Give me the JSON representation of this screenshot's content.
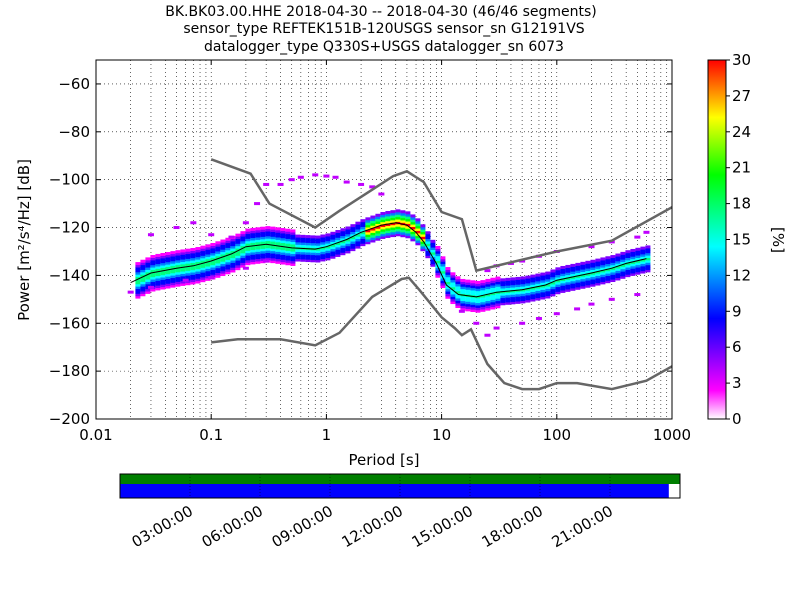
{
  "title_lines": [
    "BK.BK03.00.HHE   2018-04-30 -- 2018-04-30  (46/46 segments)",
    "sensor_type REFTEK151B-120USGS sensor_sn G12191VS",
    "datalogger_type Q330S+USGS datalogger_sn 6073"
  ],
  "chart_data": {
    "type": "heatmap",
    "xlabel": "Period [s]",
    "ylabel": "Power [m²/s⁴/Hz] [dB]",
    "x_scale": "log",
    "xlim": [
      0.01,
      1000
    ],
    "ylim": [
      -200,
      -50
    ],
    "x_ticks": [
      {
        "value": 0.01,
        "label": "0.01"
      },
      {
        "value": 0.1,
        "label": "0.1"
      },
      {
        "value": 1,
        "label": "1"
      },
      {
        "value": 10,
        "label": "10"
      },
      {
        "value": 100,
        "label": "100"
      },
      {
        "value": 1000,
        "label": "1000"
      }
    ],
    "y_ticks": [
      {
        "value": -200,
        "label": "−200"
      },
      {
        "value": -180,
        "label": "−180"
      },
      {
        "value": -160,
        "label": "−160"
      },
      {
        "value": -140,
        "label": "−140"
      },
      {
        "value": -120,
        "label": "−120"
      },
      {
        "value": -100,
        "label": "−100"
      },
      {
        "value": -80,
        "label": "−80"
      },
      {
        "value": -60,
        "label": "−60"
      }
    ],
    "grid": "dotted, at log period ticks",
    "colorbar": {
      "label": "[%]",
      "range": [
        0,
        30
      ],
      "ticks": [
        {
          "value": 30,
          "label": "30"
        },
        {
          "value": 27,
          "label": "27"
        },
        {
          "value": 24,
          "label": "24"
        },
        {
          "value": 21,
          "label": "21"
        },
        {
          "value": 18,
          "label": "18"
        },
        {
          "value": 15,
          "label": "15"
        },
        {
          "value": 12,
          "label": "12"
        },
        {
          "value": 9,
          "label": "9"
        },
        {
          "value": 6,
          "label": "6"
        },
        {
          "value": 3,
          "label": "3"
        },
        {
          "value": 0,
          "label": "0"
        }
      ]
    },
    "noise_models": [
      {
        "color": "#666666",
        "points": [
          [
            0.1,
            -91.5
          ],
          [
            0.22,
            -97.5
          ],
          [
            0.32,
            -110
          ],
          [
            0.8,
            -120
          ],
          [
            1.3,
            -113
          ],
          [
            3.8,
            -98.5
          ],
          [
            5,
            -96.5
          ],
          [
            7,
            -101
          ],
          [
            10,
            -113.5
          ],
          [
            15,
            -116.5
          ],
          [
            20,
            -138
          ],
          [
            100,
            -130
          ],
          [
            300,
            -125.5
          ],
          [
            1000,
            -111.5
          ]
        ]
      },
      {
        "color": "#666666",
        "points": [
          [
            0.1,
            -168
          ],
          [
            0.17,
            -166.7
          ],
          [
            0.4,
            -166.7
          ],
          [
            0.8,
            -169.2
          ],
          [
            1.3,
            -164
          ],
          [
            2.5,
            -149
          ],
          [
            4.5,
            -141.5
          ],
          [
            5.2,
            -141
          ],
          [
            6.4,
            -146
          ],
          [
            10,
            -157.5
          ],
          [
            13,
            -162
          ],
          [
            15,
            -165
          ],
          [
            18,
            -162.5
          ],
          [
            25,
            -177
          ],
          [
            35,
            -185
          ],
          [
            50,
            -187.5
          ],
          [
            70,
            -187.5
          ],
          [
            100,
            -185
          ],
          [
            150,
            -185
          ],
          [
            300,
            -187.5
          ],
          [
            600,
            -184
          ],
          [
            1000,
            -178
          ]
        ]
      }
    ],
    "mean_curve": {
      "color": "#000000",
      "points": [
        [
          0.02,
          -143
        ],
        [
          0.03,
          -139
        ],
        [
          0.05,
          -137
        ],
        [
          0.07,
          -136
        ],
        [
          0.1,
          -134
        ],
        [
          0.15,
          -131
        ],
        [
          0.2,
          -128
        ],
        [
          0.3,
          -127
        ],
        [
          0.5,
          -128.5
        ],
        [
          0.8,
          -129
        ],
        [
          1,
          -128
        ],
        [
          1.5,
          -125
        ],
        [
          2,
          -122
        ],
        [
          3,
          -119
        ],
        [
          4,
          -118
        ],
        [
          5,
          -119
        ],
        [
          6,
          -122
        ],
        [
          7,
          -126
        ],
        [
          9,
          -135
        ],
        [
          11,
          -144
        ],
        [
          14,
          -148
        ],
        [
          20,
          -149
        ],
        [
          30,
          -147
        ],
        [
          50,
          -146
        ],
        [
          80,
          -144
        ],
        [
          100,
          -142
        ],
        [
          200,
          -139
        ],
        [
          300,
          -137
        ],
        [
          400,
          -135
        ],
        [
          600,
          -133
        ]
      ]
    },
    "psd_bands": [
      {
        "center": [
          [
            0.02,
            -143
          ],
          [
            0.03,
            -139
          ],
          [
            0.05,
            -137
          ],
          [
            0.07,
            -136
          ],
          [
            0.1,
            -134
          ],
          [
            0.15,
            -131
          ],
          [
            0.2,
            -128
          ],
          [
            0.3,
            -127
          ],
          [
            0.5,
            -128.5
          ],
          [
            0.8,
            -129
          ],
          [
            1,
            -128
          ],
          [
            1.5,
            -125
          ],
          [
            2,
            -122
          ],
          [
            3,
            -119
          ],
          [
            4,
            -118
          ],
          [
            5,
            -119
          ],
          [
            6,
            -122
          ],
          [
            7,
            -126
          ],
          [
            9,
            -135
          ],
          [
            11,
            -144
          ],
          [
            14,
            -148
          ],
          [
            20,
            -149
          ],
          [
            30,
            -147
          ],
          [
            50,
            -146
          ],
          [
            80,
            -144
          ],
          [
            100,
            -142
          ],
          [
            200,
            -139
          ],
          [
            300,
            -137
          ],
          [
            400,
            -135
          ],
          [
            600,
            -133
          ]
        ]
      }
    ],
    "outlier_points": [
      [
        0.03,
        -123
      ],
      [
        0.05,
        -120
      ],
      [
        0.07,
        -118
      ],
      [
        0.1,
        -123
      ],
      [
        0.15,
        -124
      ],
      [
        0.2,
        -118
      ],
      [
        0.25,
        -110
      ],
      [
        0.3,
        -102
      ],
      [
        0.4,
        -102
      ],
      [
        0.5,
        -100
      ],
      [
        0.6,
        -99
      ],
      [
        0.8,
        -98
      ],
      [
        1,
        -98.5
      ],
      [
        1.2,
        -99
      ],
      [
        1.5,
        -101
      ],
      [
        2,
        -102
      ],
      [
        2.5,
        -103
      ],
      [
        3,
        -106
      ],
      [
        25,
        -138
      ],
      [
        30,
        -136
      ],
      [
        40,
        -135
      ],
      [
        50,
        -134
      ],
      [
        70,
        -132
      ],
      [
        100,
        -130
      ],
      [
        200,
        -128
      ],
      [
        300,
        -126
      ],
      [
        500,
        -124
      ],
      [
        600,
        -122
      ],
      [
        15,
        -155
      ],
      [
        20,
        -160
      ],
      [
        25,
        -165
      ],
      [
        30,
        -162
      ],
      [
        50,
        -160
      ],
      [
        70,
        -158
      ],
      [
        100,
        -156
      ],
      [
        150,
        -154
      ],
      [
        200,
        -152
      ],
      [
        300,
        -150
      ],
      [
        500,
        -148
      ],
      [
        0.02,
        -147
      ],
      [
        0.03,
        -145
      ],
      [
        0.06,
        -142
      ],
      [
        0.1,
        -141
      ],
      [
        0.2,
        -137
      ],
      [
        0.3,
        -134
      ]
    ]
  },
  "timeline": {
    "labels": [
      "03:00:00",
      "06:00:00",
      "09:00:00",
      "12:00:00",
      "15:00:00",
      "18:00:00",
      "21:00:00"
    ],
    "coverage_color": "#007f00",
    "data_color": "#0000ff",
    "data_fraction": 0.98
  }
}
